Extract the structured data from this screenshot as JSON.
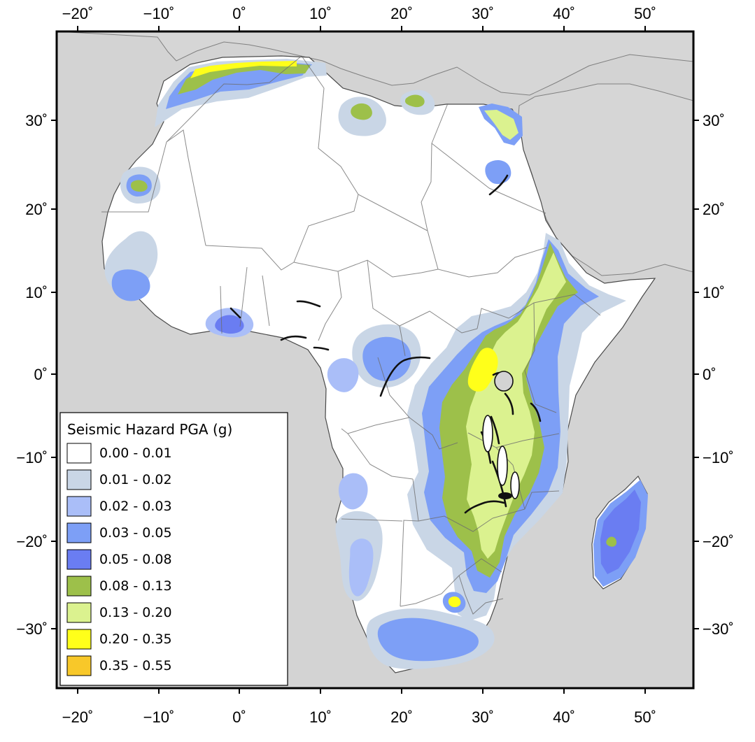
{
  "map": {
    "title": "",
    "axes": {
      "x_ticks": [
        "−20˚",
        "−10˚",
        "0˚",
        "10˚",
        "20˚",
        "30˚",
        "40˚",
        "50˚"
      ],
      "y_ticks": [
        "30˚",
        "20˚",
        "10˚",
        "0˚",
        "−10˚",
        "−20˚",
        "−30˚"
      ]
    },
    "legend": {
      "title": "Seismic Hazard PGA (g)",
      "items": [
        {
          "label": "0.00 - 0.01",
          "color": "#ffffff"
        },
        {
          "label": "0.01 - 0.02",
          "color": "#c9d6e6"
        },
        {
          "label": "0.02 - 0.03",
          "color": "#aabef8"
        },
        {
          "label": "0.03 - 0.05",
          "color": "#7d9ff6"
        },
        {
          "label": "0.05 - 0.08",
          "color": "#6a7df2"
        },
        {
          "label": "0.08 - 0.13",
          "color": "#9dc04a"
        },
        {
          "label": "0.13 - 0.20",
          "color": "#dbf28f"
        },
        {
          "label": "0.20 - 0.35",
          "color": "#ffff1a"
        },
        {
          "label": "0.35 - 0.55",
          "color": "#f8c829"
        }
      ]
    },
    "colors": {
      "ocean": "#d3d3d3",
      "land_outside": "#d6d6d6",
      "africa_base": "#ffffff",
      "border": "#6d6d6d",
      "frame": "#000000"
    }
  }
}
